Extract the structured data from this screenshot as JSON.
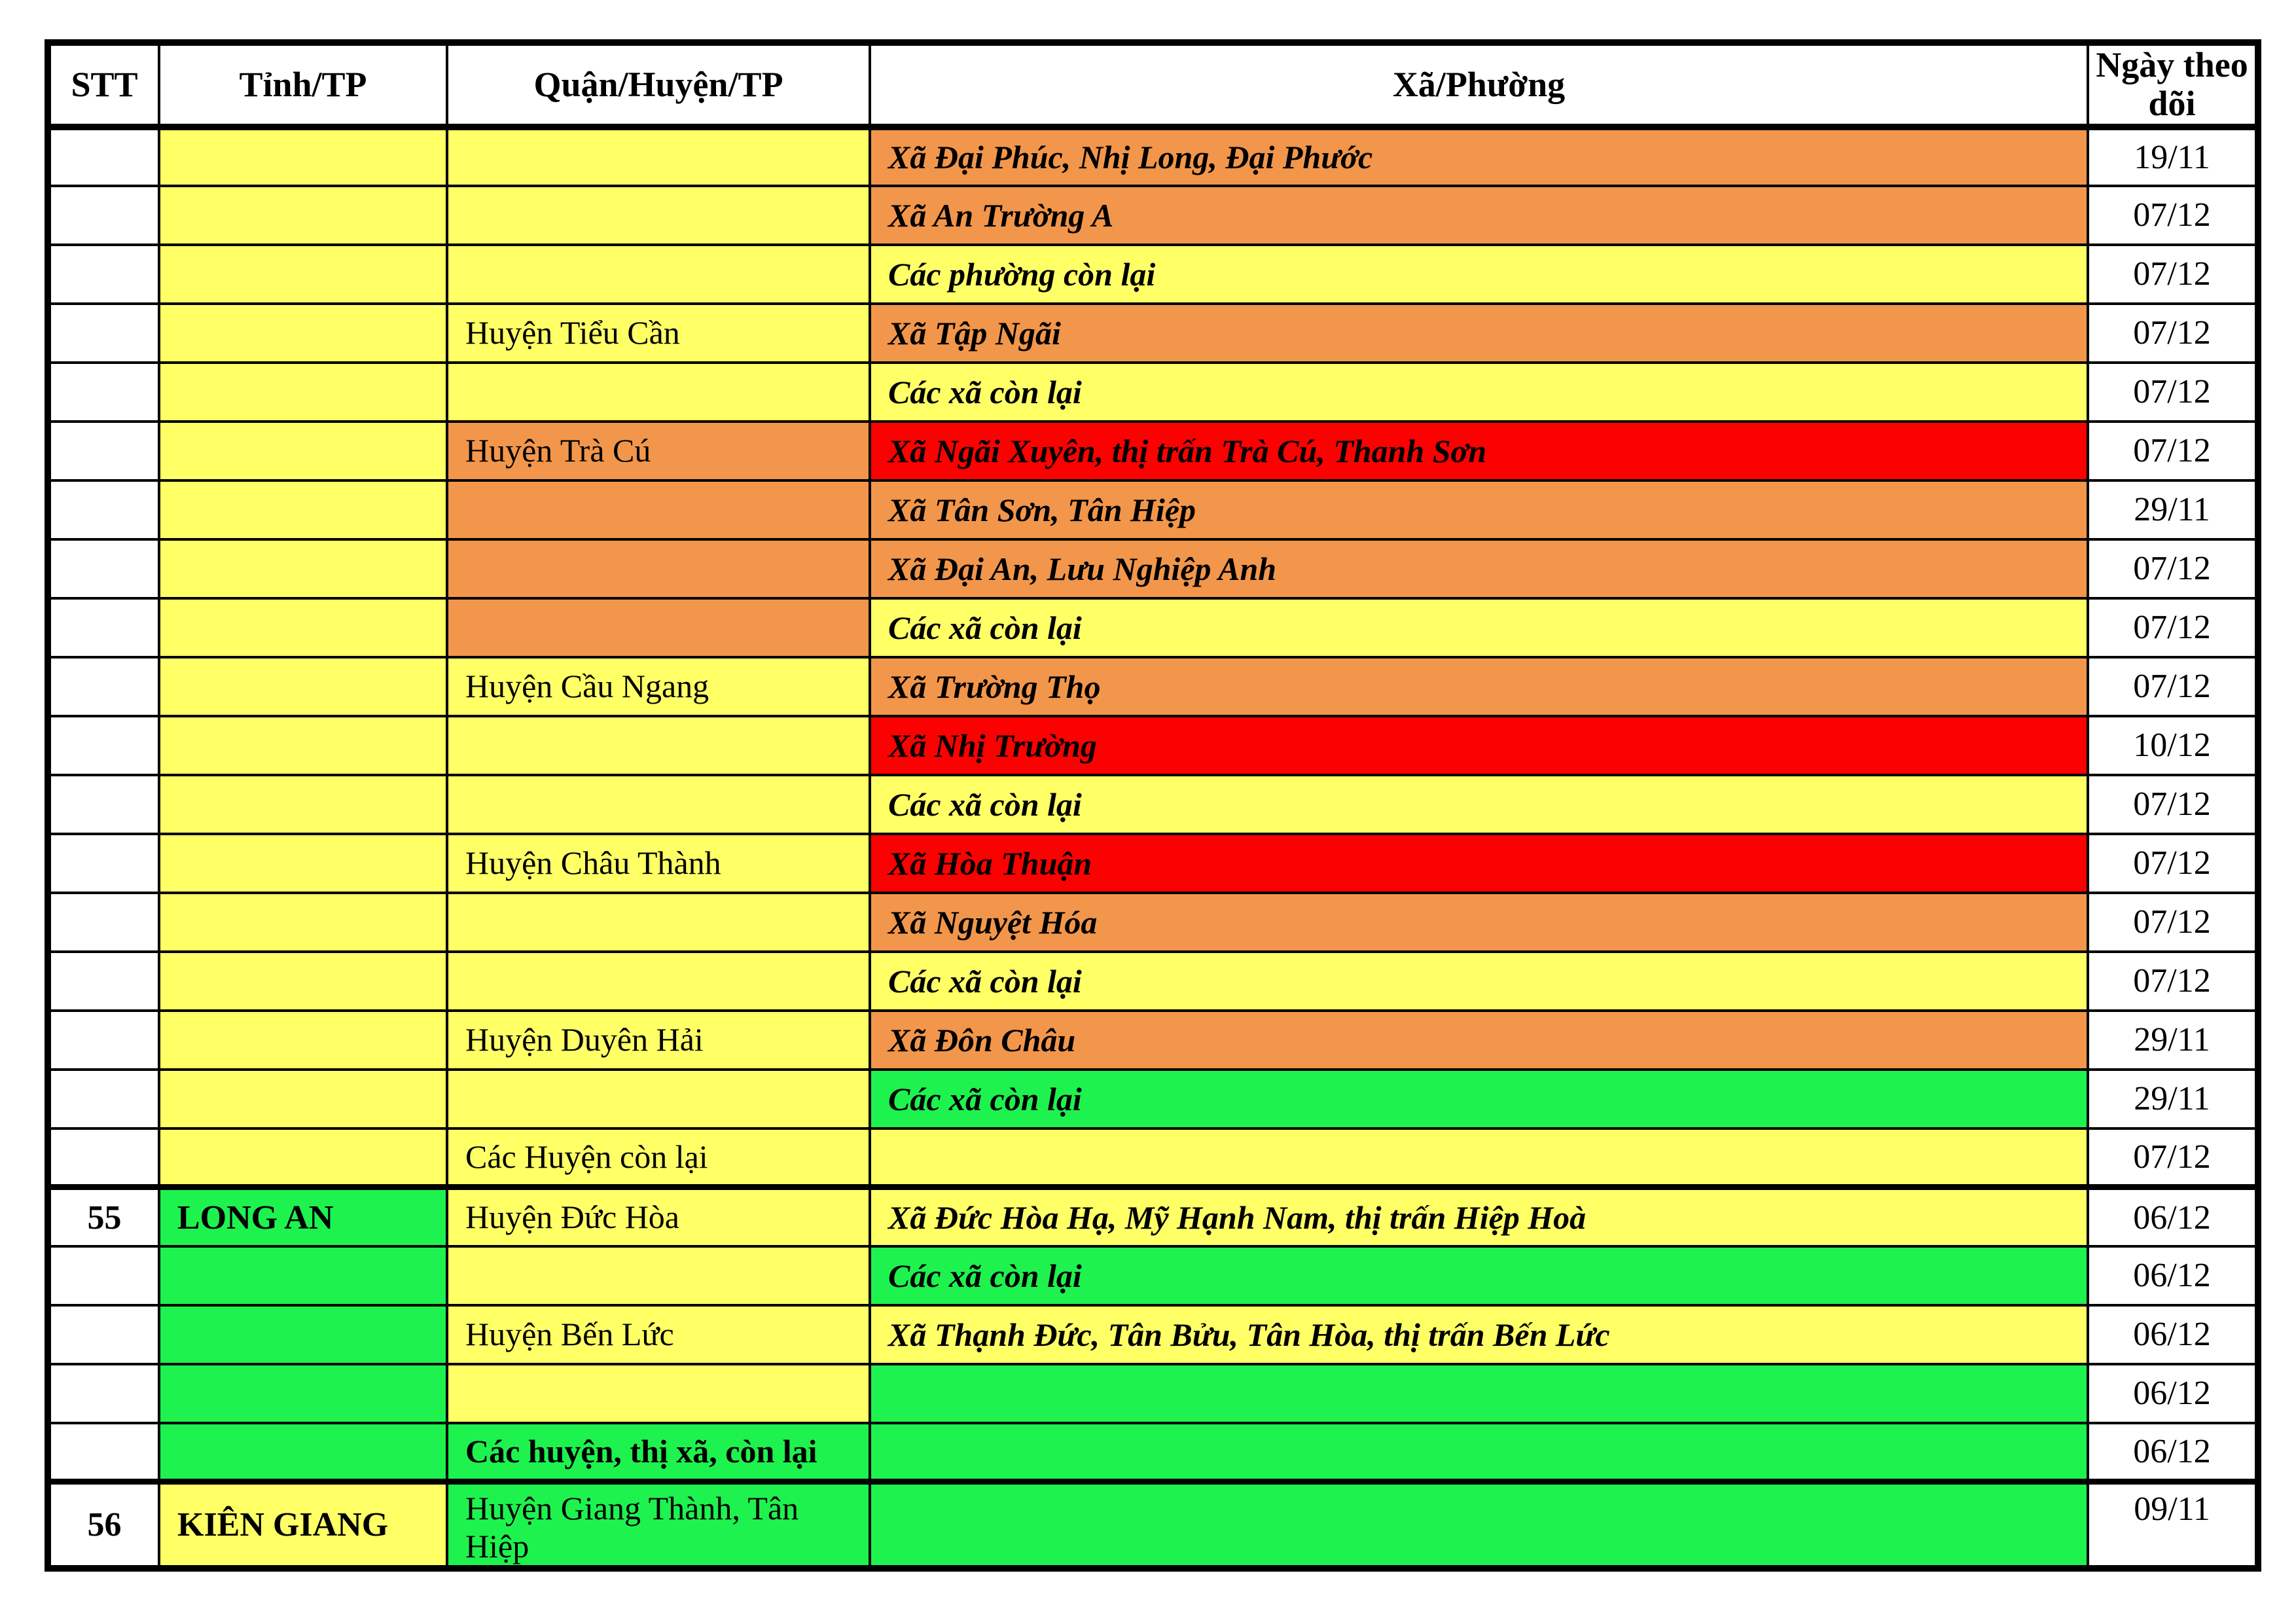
{
  "palette": {
    "yellow": "#FFFF66",
    "orange": "#F2964B",
    "red": "#FB0101",
    "green": "#1EF24E",
    "white": "#FFFFFF",
    "border": "#000000"
  },
  "header": {
    "columns": [
      "STT",
      "Tỉnh/TP",
      "Quận/Huyện/TP",
      "Xã/Phường",
      "Ngày theo dõi"
    ]
  },
  "rows": [
    {
      "stt": "",
      "tinh": "",
      "tinh_bg": "yellow",
      "huyen": "",
      "huyen_bg": "yellow",
      "huyen_bold": false,
      "xa": "Xã Đại Phúc, Nhị Long, Đại Phước",
      "xa_bg": "orange",
      "ngay": "19/11",
      "thick_top": false,
      "tall": false
    },
    {
      "stt": "",
      "tinh": "",
      "tinh_bg": "yellow",
      "huyen": "",
      "huyen_bg": "yellow",
      "huyen_bold": false,
      "xa": "Xã An Trường A",
      "xa_bg": "orange",
      "ngay": "07/12",
      "thick_top": false,
      "tall": false
    },
    {
      "stt": "",
      "tinh": "",
      "tinh_bg": "yellow",
      "huyen": "",
      "huyen_bg": "yellow",
      "huyen_bold": false,
      "xa": "Các phường còn lại",
      "xa_bg": "yellow",
      "ngay": "07/12",
      "thick_top": false,
      "tall": false
    },
    {
      "stt": "",
      "tinh": "",
      "tinh_bg": "yellow",
      "huyen": "Huyện Tiểu Cần",
      "huyen_bg": "yellow",
      "huyen_bold": false,
      "xa": "Xã Tập Ngãi",
      "xa_bg": "orange",
      "ngay": "07/12",
      "thick_top": false,
      "tall": false
    },
    {
      "stt": "",
      "tinh": "",
      "tinh_bg": "yellow",
      "huyen": "",
      "huyen_bg": "yellow",
      "huyen_bold": false,
      "xa": "Các xã còn lại",
      "xa_bg": "yellow",
      "ngay": "07/12",
      "thick_top": false,
      "tall": false
    },
    {
      "stt": "",
      "tinh": "",
      "tinh_bg": "yellow",
      "huyen": "Huyện Trà Cú",
      "huyen_bg": "orange",
      "huyen_bold": false,
      "xa": "Xã Ngãi Xuyên, thị trấn Trà Cú, Thanh Sơn",
      "xa_bg": "red",
      "ngay": "07/12",
      "thick_top": false,
      "tall": false
    },
    {
      "stt": "",
      "tinh": "",
      "tinh_bg": "yellow",
      "huyen": "",
      "huyen_bg": "orange",
      "huyen_bold": false,
      "xa": "Xã Tân Sơn, Tân Hiệp",
      "xa_bg": "orange",
      "ngay": "29/11",
      "thick_top": false,
      "tall": false
    },
    {
      "stt": "",
      "tinh": "",
      "tinh_bg": "yellow",
      "huyen": "",
      "huyen_bg": "orange",
      "huyen_bold": false,
      "xa": "Xã Đại An, Lưu Nghiệp Anh",
      "xa_bg": "orange",
      "ngay": "07/12",
      "thick_top": false,
      "tall": false
    },
    {
      "stt": "",
      "tinh": "",
      "tinh_bg": "yellow",
      "huyen": "",
      "huyen_bg": "orange",
      "huyen_bold": false,
      "xa": "Các xã còn lại",
      "xa_bg": "yellow",
      "ngay": "07/12",
      "thick_top": false,
      "tall": false
    },
    {
      "stt": "",
      "tinh": "",
      "tinh_bg": "yellow",
      "huyen": "Huyện Cầu Ngang",
      "huyen_bg": "yellow",
      "huyen_bold": false,
      "xa": "Xã Trường Thọ",
      "xa_bg": "orange",
      "ngay": "07/12",
      "thick_top": false,
      "tall": false
    },
    {
      "stt": "",
      "tinh": "",
      "tinh_bg": "yellow",
      "huyen": "",
      "huyen_bg": "yellow",
      "huyen_bold": false,
      "xa": "Xã Nhị Trường",
      "xa_bg": "red",
      "ngay": "10/12",
      "thick_top": false,
      "tall": false
    },
    {
      "stt": "",
      "tinh": "",
      "tinh_bg": "yellow",
      "huyen": "",
      "huyen_bg": "yellow",
      "huyen_bold": false,
      "xa": "Các xã còn lại",
      "xa_bg": "yellow",
      "ngay": "07/12",
      "thick_top": false,
      "tall": false
    },
    {
      "stt": "",
      "tinh": "",
      "tinh_bg": "yellow",
      "huyen": "Huyện Châu Thành",
      "huyen_bg": "yellow",
      "huyen_bold": false,
      "xa": "Xã Hòa Thuận",
      "xa_bg": "red",
      "ngay": "07/12",
      "thick_top": false,
      "tall": false
    },
    {
      "stt": "",
      "tinh": "",
      "tinh_bg": "yellow",
      "huyen": "",
      "huyen_bg": "yellow",
      "huyen_bold": false,
      "xa": "Xã Nguyệt Hóa",
      "xa_bg": "orange",
      "ngay": "07/12",
      "thick_top": false,
      "tall": false
    },
    {
      "stt": "",
      "tinh": "",
      "tinh_bg": "yellow",
      "huyen": "",
      "huyen_bg": "yellow",
      "huyen_bold": false,
      "xa": "Các xã còn lại",
      "xa_bg": "yellow",
      "ngay": "07/12",
      "thick_top": false,
      "tall": false
    },
    {
      "stt": "",
      "tinh": "",
      "tinh_bg": "yellow",
      "huyen": "Huyện Duyên Hải",
      "huyen_bg": "yellow",
      "huyen_bold": false,
      "xa": "Xã Đôn Châu",
      "xa_bg": "orange",
      "ngay": "29/11",
      "thick_top": false,
      "tall": false
    },
    {
      "stt": "",
      "tinh": "",
      "tinh_bg": "yellow",
      "huyen": "",
      "huyen_bg": "yellow",
      "huyen_bold": false,
      "xa": "Các xã còn lại",
      "xa_bg": "green",
      "ngay": "29/11",
      "thick_top": false,
      "tall": false
    },
    {
      "stt": "",
      "tinh": "",
      "tinh_bg": "yellow",
      "huyen": "Các Huyện còn lại",
      "huyen_bg": "yellow",
      "huyen_bold": false,
      "xa": "",
      "xa_bg": "yellow",
      "ngay": "07/12",
      "thick_top": false,
      "tall": false
    },
    {
      "stt": "55",
      "tinh": "LONG AN",
      "tinh_bg": "green",
      "huyen": "Huyện Đức Hòa",
      "huyen_bg": "yellow",
      "huyen_bold": false,
      "xa": "Xã Đức Hòa Hạ, Mỹ Hạnh Nam, thị trấn Hiệp Hoà",
      "xa_bg": "yellow",
      "ngay": "06/12",
      "thick_top": true,
      "tall": false
    },
    {
      "stt": "",
      "tinh": "",
      "tinh_bg": "green",
      "huyen": "",
      "huyen_bg": "yellow",
      "huyen_bold": false,
      "xa": "Các xã còn lại",
      "xa_bg": "green",
      "ngay": "06/12",
      "thick_top": false,
      "tall": false
    },
    {
      "stt": "",
      "tinh": "",
      "tinh_bg": "green",
      "huyen": "Huyện Bến Lức",
      "huyen_bg": "yellow",
      "huyen_bold": false,
      "xa": "Xã Thạnh Đức, Tân Bửu, Tân Hòa, thị trấn Bến Lức",
      "xa_bg": "yellow",
      "ngay": "06/12",
      "thick_top": false,
      "tall": false
    },
    {
      "stt": "",
      "tinh": "",
      "tinh_bg": "green",
      "huyen": "",
      "huyen_bg": "yellow",
      "huyen_bold": false,
      "xa": "",
      "xa_bg": "green",
      "ngay": "06/12",
      "thick_top": false,
      "tall": false
    },
    {
      "stt": "",
      "tinh": "",
      "tinh_bg": "green",
      "huyen": "Các huyện, thị xã, còn lại",
      "huyen_bg": "green",
      "huyen_bold": true,
      "xa": "",
      "xa_bg": "green",
      "ngay": "06/12",
      "thick_top": false,
      "tall": false
    },
    {
      "stt": "56",
      "tinh": "KIÊN GIANG",
      "tinh_bg": "yellow",
      "huyen": "Huyện Giang Thành, Tân Hiệp",
      "huyen_bg": "green",
      "huyen_bold": false,
      "xa": "",
      "xa_bg": "green",
      "ngay": "09/11",
      "thick_top": true,
      "tall": true
    }
  ]
}
